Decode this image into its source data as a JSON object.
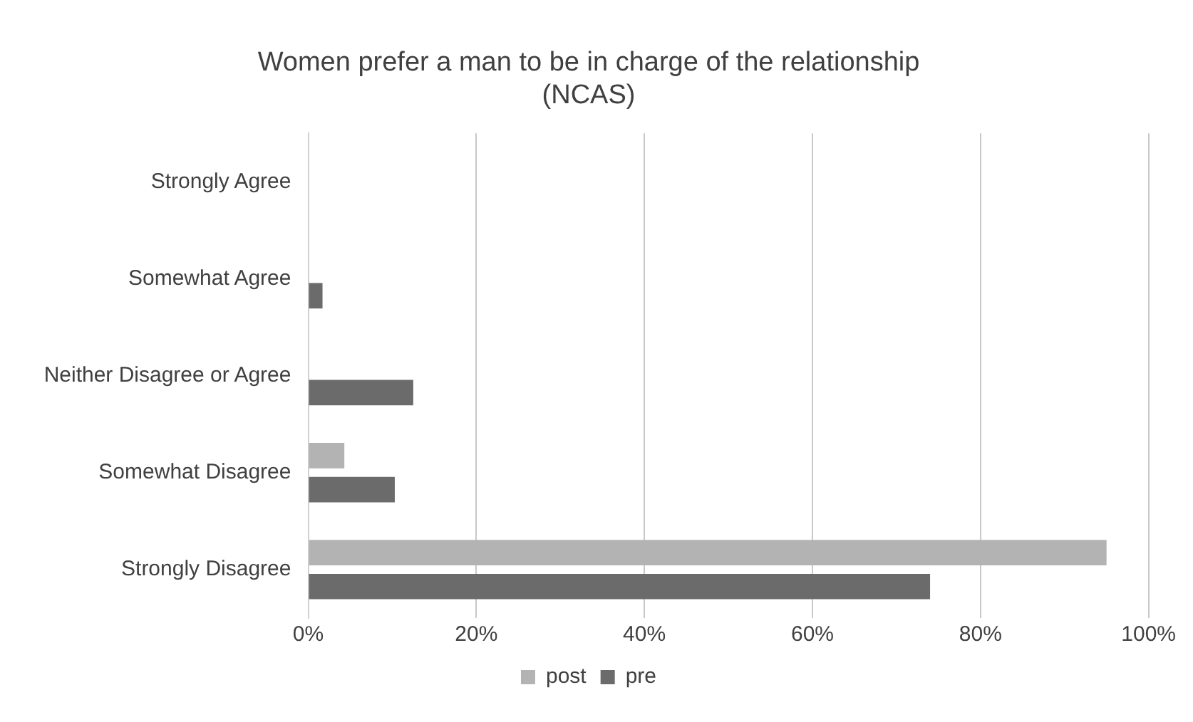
{
  "chart_data": {
    "type": "bar",
    "orientation": "horizontal",
    "title": [
      "Women prefer a man to be in charge of the relationship",
      "(NCAS)"
    ],
    "categories": [
      "Strongly Agree",
      "Somewhat Agree",
      "Neither Disagree or Agree",
      "Somewhat Disagree",
      "Strongly Disagree"
    ],
    "series": [
      {
        "name": "post",
        "color": "#b3b3b3",
        "values": [
          0,
          0,
          0,
          4.3,
          95
        ]
      },
      {
        "name": "pre",
        "color": "#6b6b6b",
        "values": [
          0,
          1.7,
          12.5,
          10.3,
          74
        ]
      }
    ],
    "xlim": [
      0,
      100
    ],
    "xticks": [
      {
        "value": 0,
        "label": "0%"
      },
      {
        "value": 20,
        "label": "20%"
      },
      {
        "value": 40,
        "label": "40%"
      },
      {
        "value": 60,
        "label": "60%"
      },
      {
        "value": 80,
        "label": "80%"
      },
      {
        "value": 100,
        "label": "100%"
      }
    ],
    "grid": "x",
    "legend": "bottom"
  }
}
